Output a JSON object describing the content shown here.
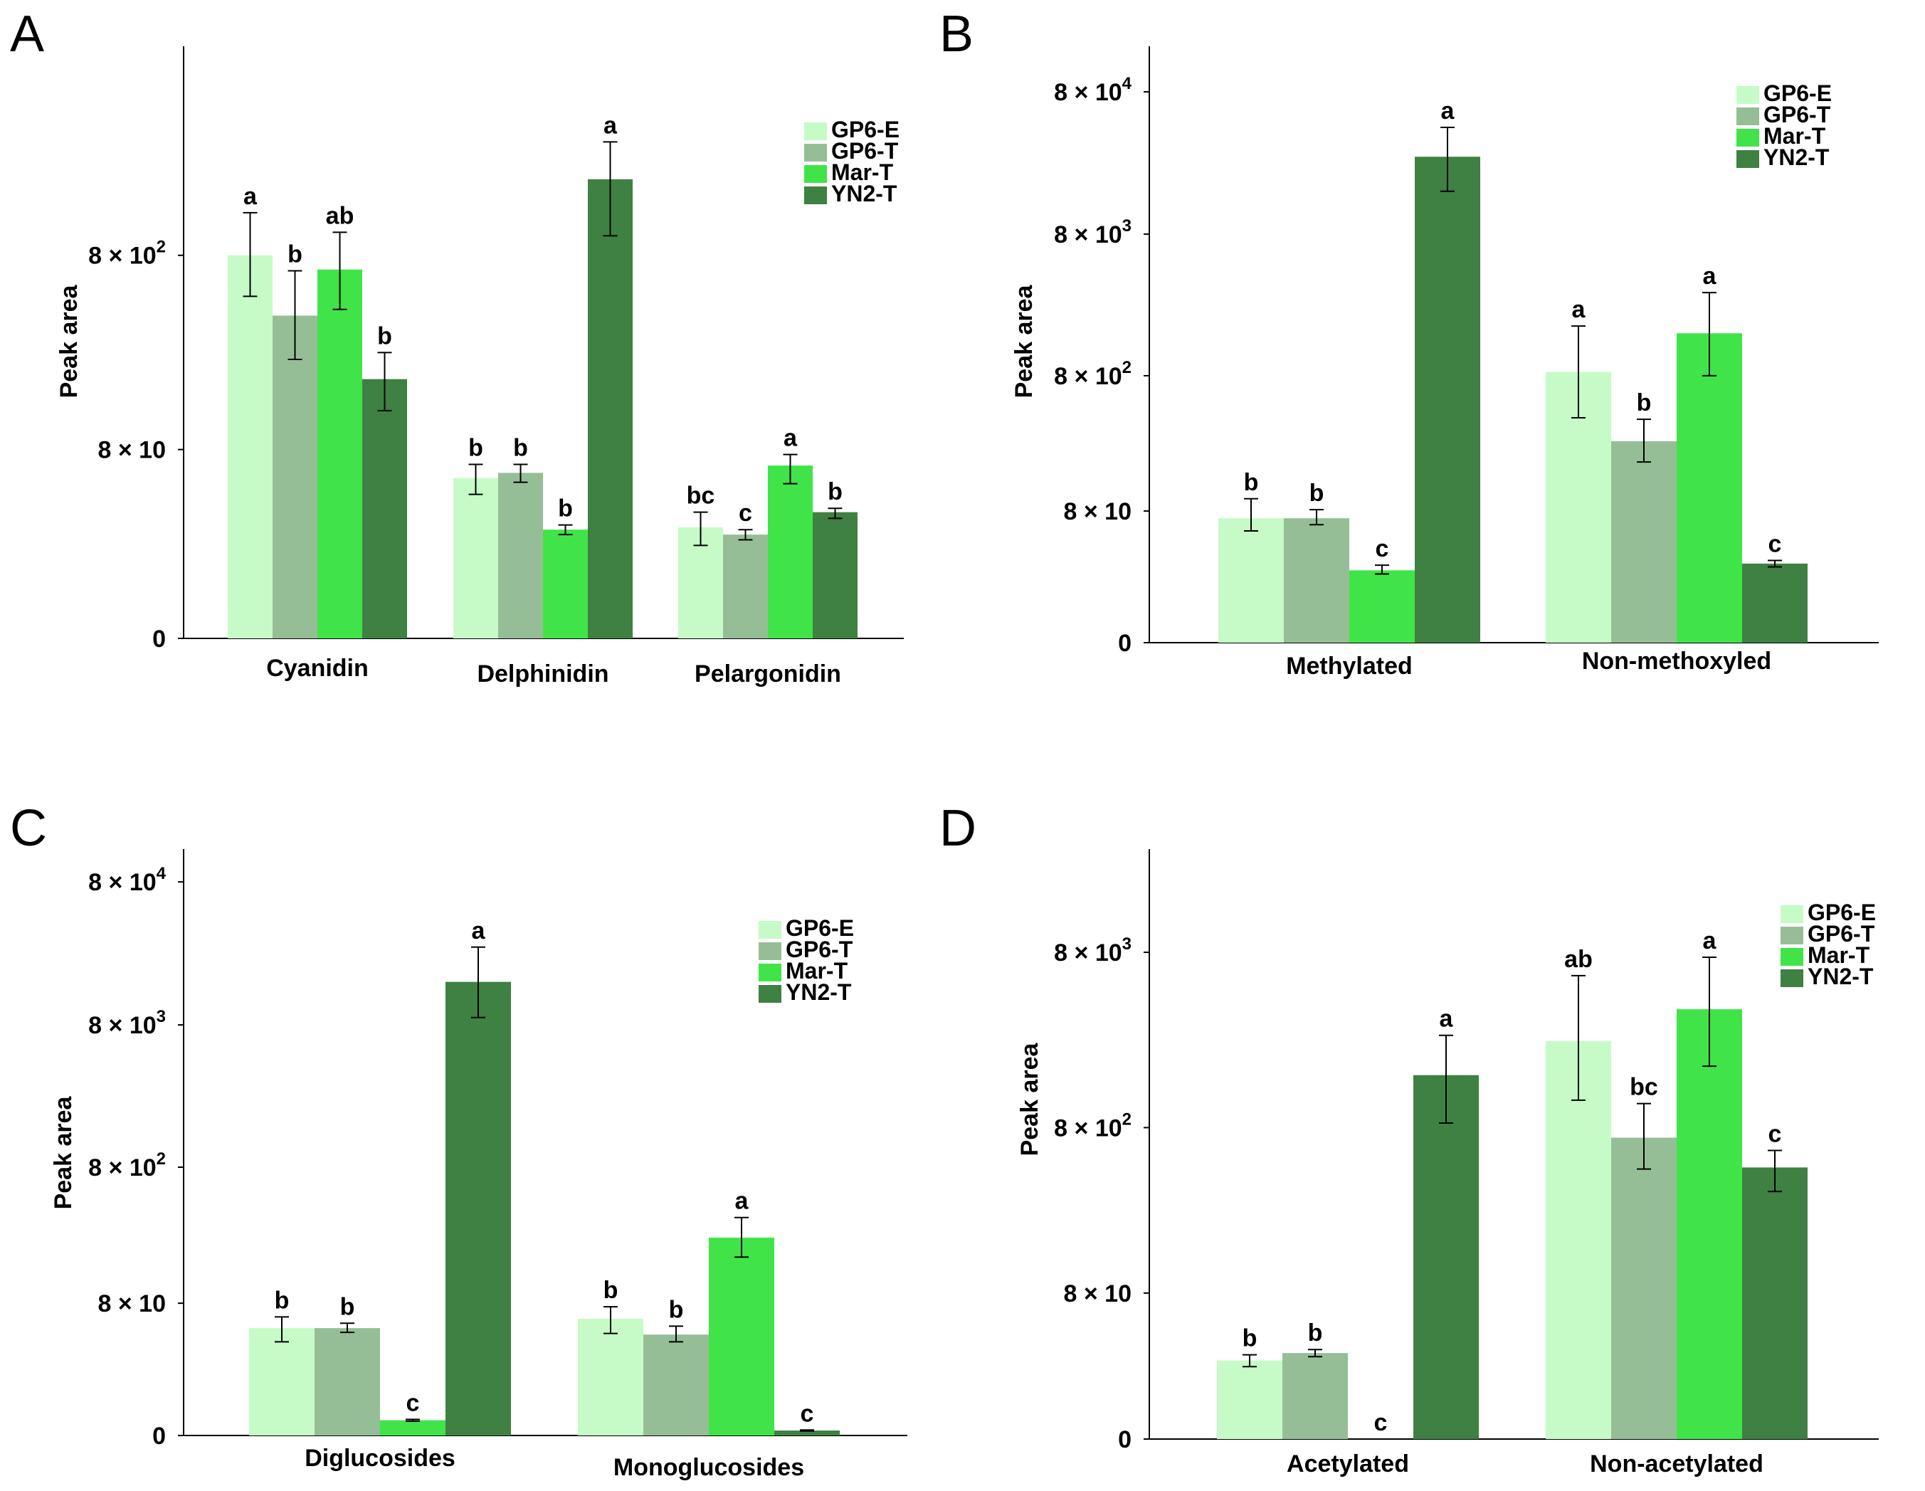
{
  "chart_data": [
    {
      "panel": "A",
      "type": "bar",
      "ylabel": "Peak area",
      "yscale": "symlog",
      "yticks": [
        {
          "base": "0",
          "exp": ""
        },
        {
          "base": "8 × 10",
          "exp": ""
        },
        {
          "base": "8 × 10",
          "exp": "2"
        }
      ],
      "series_names": [
        "GP6-E",
        "GP6-T",
        "Mar-T",
        "YN2-T"
      ],
      "colors": [
        "#c6fbc8",
        "#96be96",
        "#40e448",
        "#3e8142"
      ],
      "categories": [
        {
          "name": "Cyanidin",
          "values": [
            800,
            400,
            680,
            190
          ],
          "errors": [
            [
              500,
              1300
            ],
            [
              240,
              670
            ],
            [
              430,
              1040
            ],
            [
              130,
              260
            ]
          ],
          "labels": [
            "a",
            "b",
            "ab",
            "b"
          ]
        },
        {
          "name": "Delphinidin",
          "values": [
            55,
            59,
            26,
            1900
          ],
          "errors": [
            [
              44,
              66
            ],
            [
              52,
              66
            ],
            [
              24,
              28
            ],
            [
              1000,
              2900
            ]
          ],
          "labels": [
            "b",
            "b",
            "b",
            "a"
          ]
        },
        {
          "name": "Pelargonidin",
          "values": [
            27,
            24,
            65,
            34
          ],
          "errors": [
            [
              20,
              34
            ],
            [
              22,
              26
            ],
            [
              51,
              75
            ],
            [
              31,
              36
            ]
          ],
          "labels": [
            "bc",
            "c",
            "a",
            "b"
          ]
        }
      ],
      "legend_position": "top-right"
    },
    {
      "panel": "B",
      "type": "bar",
      "ylabel": "Peak area",
      "yscale": "symlog",
      "yticks": [
        {
          "base": "0",
          "exp": ""
        },
        {
          "base": "8 × 10",
          "exp": ""
        },
        {
          "base": "8 × 10",
          "exp": "2"
        },
        {
          "base": "8 × 10",
          "exp": "3"
        },
        {
          "base": "8 × 10",
          "exp": "4"
        }
      ],
      "series_names": [
        "GP6-E",
        "GP6-T",
        "Mar-T",
        "YN2-T"
      ],
      "colors": [
        "#c6fbc8",
        "#96be96",
        "#40e448",
        "#3e8142"
      ],
      "categories": [
        {
          "name": "Methylated",
          "values": [
            70,
            70,
            24,
            28000
          ],
          "errors": [
            [
              55,
              100
            ],
            [
              62,
              82
            ],
            [
              22,
              27
            ],
            [
              16000,
              45000
            ]
          ],
          "labels": [
            "b",
            "b",
            "c",
            "a"
          ]
        },
        {
          "name": "Non-methoxyled",
          "values": [
            850,
            270,
            1600,
            28
          ],
          "errors": [
            [
              400,
              1800
            ],
            [
              190,
              390
            ],
            [
              800,
              3100
            ],
            [
              26,
              30
            ]
          ],
          "labels": [
            "a",
            "b",
            "a",
            "c"
          ]
        }
      ],
      "legend_position": "top-right"
    },
    {
      "panel": "C",
      "type": "bar",
      "ylabel": "Peak area",
      "yscale": "symlog",
      "yticks": [
        {
          "base": "0",
          "exp": ""
        },
        {
          "base": "8 × 10",
          "exp": ""
        },
        {
          "base": "8 × 10",
          "exp": "2"
        },
        {
          "base": "8 × 10",
          "exp": "3"
        },
        {
          "base": "8 × 10",
          "exp": "4"
        }
      ],
      "series_names": [
        "GP6-E",
        "GP6-T",
        "Mar-T",
        "YN2-T"
      ],
      "colors": [
        "#c6fbc8",
        "#96be96",
        "#40e448",
        "#3e8142"
      ],
      "categories": [
        {
          "name": "Diglucosides",
          "values": [
            50,
            50,
            3,
            16000
          ],
          "errors": [
            [
              38,
              62
            ],
            [
              46,
              55
            ],
            [
              2.8,
              3.2
            ],
            [
              9000,
              28000
            ]
          ],
          "labels": [
            "b",
            "b",
            "c",
            "a"
          ]
        },
        {
          "name": "Monoglucosides",
          "values": [
            60,
            44,
            250,
            0.9
          ],
          "errors": [
            [
              45,
              75
            ],
            [
              38,
              52
            ],
            [
              180,
              350
            ],
            [
              0.8,
              1.0
            ]
          ],
          "labels": [
            "b",
            "b",
            "a",
            "c"
          ]
        }
      ],
      "legend_position": "top-right"
    },
    {
      "panel": "D",
      "type": "bar",
      "ylabel": "Peak area",
      "yscale": "symlog",
      "yticks": [
        {
          "base": "0",
          "exp": ""
        },
        {
          "base": "8 × 10",
          "exp": ""
        },
        {
          "base": "8 × 10",
          "exp": "2"
        },
        {
          "base": "8 × 10",
          "exp": "3"
        }
      ],
      "series_names": [
        "GP6-E",
        "GP6-T",
        "Mar-T",
        "YN2-T"
      ],
      "colors": [
        "#c6fbc8",
        "#96be96",
        "#40e448",
        "#3e8142"
      ],
      "categories": [
        {
          "name": "Acetylated",
          "values": [
            25,
            29,
            0,
            1600
          ],
          "errors": [
            [
              22,
              28
            ],
            [
              27,
              31
            ],
            [
              0,
              0
            ],
            [
              850,
              2700
            ]
          ],
          "labels": [
            "b",
            "b",
            "c",
            "a"
          ]
        },
        {
          "name": "Non-acetylated",
          "values": [
            2500,
            700,
            3800,
            470
          ],
          "errors": [
            [
              1150,
              5900
            ],
            [
              460,
              1100
            ],
            [
              1800,
              7500
            ],
            [
              340,
              590
            ]
          ],
          "labels": [
            "ab",
            "bc",
            "a",
            "c"
          ]
        }
      ],
      "legend_position": "top-right"
    }
  ]
}
